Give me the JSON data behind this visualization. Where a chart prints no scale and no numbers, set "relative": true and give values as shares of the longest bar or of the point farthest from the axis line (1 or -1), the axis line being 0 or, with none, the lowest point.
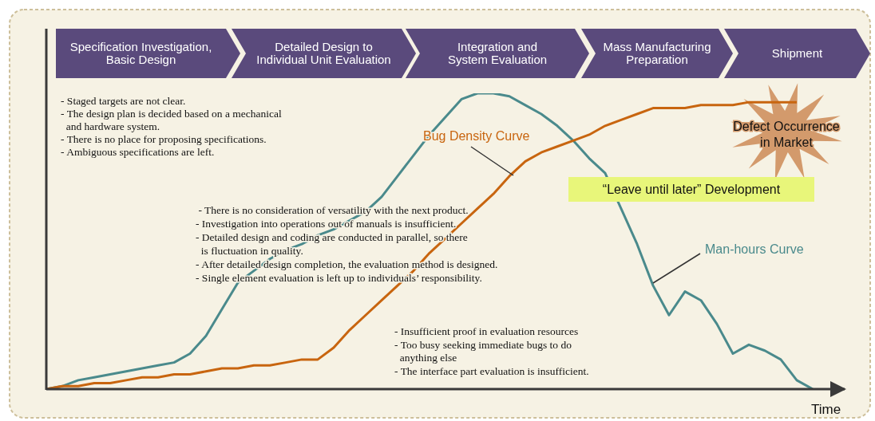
{
  "chart_data": {
    "type": "line",
    "relative": true,
    "xlabel": "Time",
    "marker": "none",
    "categories": [
      null,
      null,
      null,
      null,
      null,
      null,
      null,
      null,
      null,
      null,
      null,
      null,
      null,
      null,
      null,
      null,
      null,
      null,
      null,
      null,
      null,
      null,
      null,
      null,
      null,
      null,
      null,
      null,
      null,
      null,
      null,
      null,
      null,
      null,
      null,
      null,
      null,
      null,
      null,
      null,
      null,
      null,
      null,
      null,
      null,
      null,
      null,
      null,
      null
    ],
    "series": [
      {
        "name": "Man-hours Curve",
        "color": "#4a8a8c",
        "values": [
          0,
          0.01,
          0.03,
          0.04,
          0.05,
          0.06,
          0.07,
          0.08,
          0.09,
          0.12,
          0.18,
          0.27,
          0.36,
          0.4,
          0.44,
          0.47,
          0.49,
          0.52,
          0.54,
          0.57,
          0.6,
          0.65,
          0.72,
          0.79,
          0.86,
          0.92,
          0.98,
          1,
          1,
          0.99,
          0.96,
          0.93,
          0.89,
          0.84,
          0.78,
          0.73,
          0.61,
          0.49,
          0.35,
          0.25,
          0.33,
          0.3,
          0.22,
          0.12,
          0.15,
          0.13,
          0.1,
          0.03,
          0
        ]
      },
      {
        "name": "Bug Density Curve",
        "color": "#c8650f",
        "values": [
          0,
          0.01,
          0.01,
          0.02,
          0.02,
          0.03,
          0.04,
          0.04,
          0.05,
          0.05,
          0.06,
          0.07,
          0.07,
          0.08,
          0.08,
          0.09,
          0.1,
          0.1,
          0.14,
          0.2,
          0.25,
          0.3,
          0.35,
          0.4,
          0.46,
          0.51,
          0.56,
          0.61,
          0.66,
          0.72,
          0.77,
          0.8,
          0.82,
          0.84,
          0.86,
          0.89,
          0.91,
          0.93,
          0.95,
          0.95,
          0.95,
          0.96,
          0.96,
          0.96,
          0.97,
          0.97,
          0.97,
          0.97,
          null
        ]
      }
    ],
    "annotations": [
      "Specification Investigation,\nBasic Design",
      "Detailed Design to\nIndividual Unit Evaluation",
      "Integration and\nSystem Evaluation",
      "Mass Manufacturing\nPreparation",
      "Shipment",
      "- Staged targets are not clear.\n- The design plan is decided based on a mechanical\n  and hardware system.\n- There is no place for proposing specifications.\n- Ambiguous specifications are left.",
      " - There is no consideration of versatility with the next product.\n- Investigation into operations out of manuals is insufficient.\n- Detailed design and coding are conducted in parallel, so there\n  is fluctuation in quality.\n- After detailed design completion, the evaluation method is designed.\n- Single element evaluation is left up to individuals’ responsibility.",
      "- Insufficient proof in evaluation resources\n- Too busy seeking immediate bugs to do\n  anything else\n- The interface part evaluation is insufficient.",
      "“Leave until later” Development",
      "Defect Occurrence\nin Market"
    ]
  }
}
